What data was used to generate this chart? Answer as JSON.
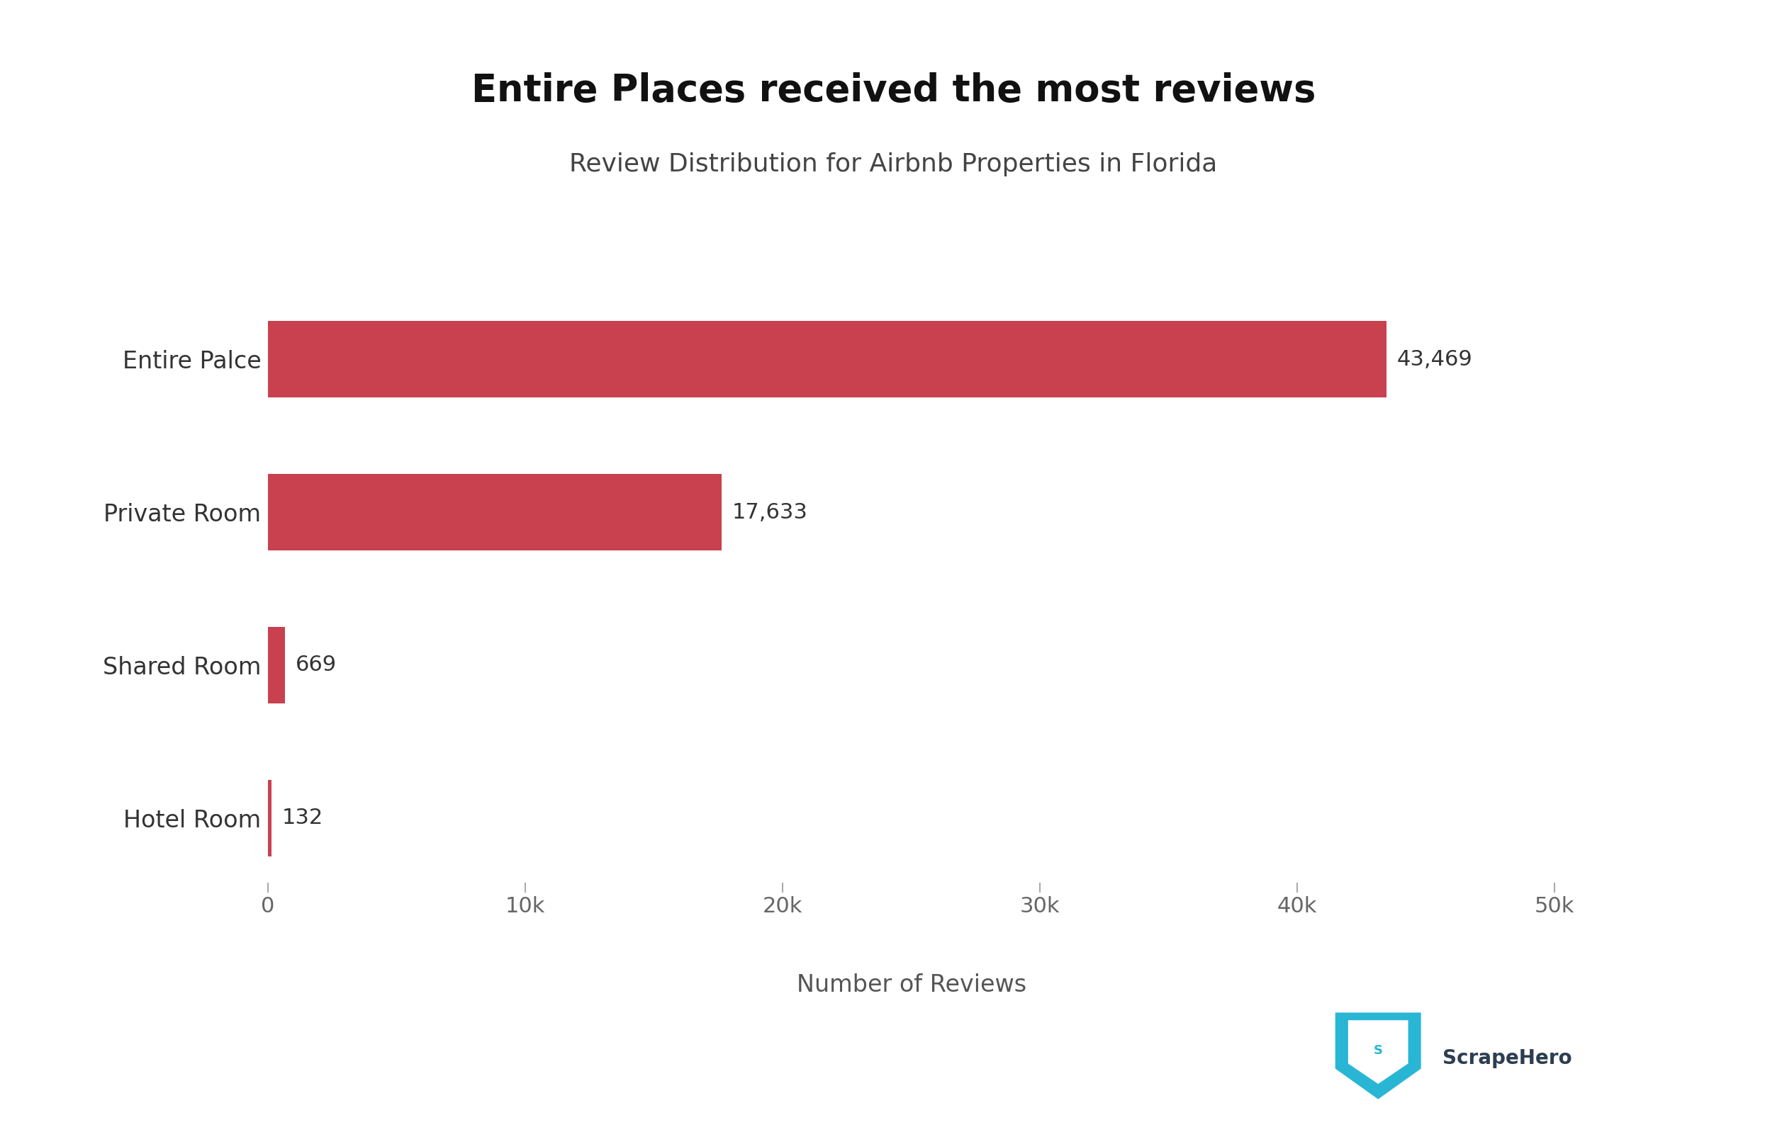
{
  "title": "Entire Places received the most reviews",
  "subtitle": "Review Distribution for Airbnb Properties in Florida",
  "xlabel": "Number of Reviews",
  "categories": [
    "Hotel Room",
    "Shared Room",
    "Private Room",
    "Entire Palce"
  ],
  "values": [
    132,
    669,
    17633,
    43469
  ],
  "labels": [
    "132",
    "669",
    "17,633",
    "43,469"
  ],
  "bar_color": "#C9414E",
  "background_color": "#ffffff",
  "title_fontsize": 38,
  "subtitle_fontsize": 26,
  "label_fontsize": 22,
  "tick_fontsize": 22,
  "xlabel_fontsize": 24,
  "xlim": [
    0,
    50000
  ],
  "xticks": [
    0,
    10000,
    20000,
    30000,
    40000,
    50000
  ],
  "xtick_labels": [
    "0",
    "10k",
    "20k",
    "30k",
    "40k",
    "50k"
  ],
  "category_fontsize": 24,
  "scrapehero_text": "ScrapeHero",
  "scrapehero_color": "#2d3e50",
  "scrapehero_icon_color": "#29b6d5"
}
